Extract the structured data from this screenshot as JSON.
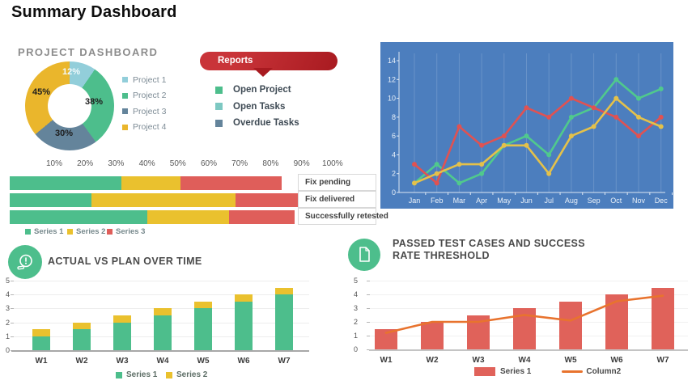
{
  "page": {
    "title": "Summary Dashboard"
  },
  "reports": {
    "label": "Reports",
    "color": "#be2127",
    "items": [
      {
        "label": "Open Project",
        "color": "#4dbe8c"
      },
      {
        "label": "Open Tasks",
        "color": "#7dc8c2"
      },
      {
        "label": "Overdue Tasks",
        "color": "#64849b"
      }
    ]
  },
  "chart_data": [
    {
      "id": "project-dashboard-donut",
      "type": "pie",
      "title": "PROJECT DASHBOARD",
      "labels": [
        "Project 1",
        "Project 2",
        "Project 3",
        "Project 4"
      ],
      "values": [
        12,
        38,
        30,
        45
      ],
      "pct_labels": [
        "12%",
        "38%",
        "30%",
        "45%"
      ],
      "colors": [
        "#92ceda",
        "#4dbe8c",
        "#64849b",
        "#eab62c"
      ],
      "legend_position": "right"
    },
    {
      "id": "monthly-trend-lines",
      "type": "line",
      "background": "#4c7ebe",
      "x": [
        "Jan",
        "Feb",
        "Mar",
        "Apr",
        "May",
        "Jun",
        "Jul",
        "Aug",
        "Sep",
        "Oct",
        "Nov",
        "Dec"
      ],
      "y_ticks": [
        0,
        2,
        4,
        6,
        8,
        10,
        12,
        14
      ],
      "ylim": [
        0,
        14
      ],
      "grid": true,
      "series": [
        {
          "name": "green-series",
          "color": "#50c98d",
          "values": [
            1,
            3,
            1,
            2,
            5,
            6,
            4,
            8,
            9,
            12,
            10,
            11
          ]
        },
        {
          "name": "red-series",
          "color": "#e05252",
          "values": [
            3,
            1,
            7,
            5,
            6,
            9,
            8,
            10,
            9,
            8,
            6,
            8
          ]
        },
        {
          "name": "yellow-series",
          "color": "#e4c14a",
          "values": [
            1,
            2,
            3,
            3,
            5,
            5,
            2,
            6,
            7,
            10,
            8,
            7
          ]
        }
      ]
    },
    {
      "id": "fix-status-stacked-bars",
      "type": "bar",
      "orientation": "horizontal",
      "stacked": true,
      "axis_labels": [
        "10%",
        "20%",
        "30%",
        "40%",
        "50%",
        "60%",
        "70%",
        "80%",
        "90%",
        "100%"
      ],
      "xlim_pct": [
        0,
        100
      ],
      "categories": [
        "Fix pending",
        "Fix delivered",
        "Successfully retested"
      ],
      "series": [
        {
          "name": "Series 1",
          "color": "#4dbe8c",
          "values": [
            34,
            25,
            42
          ]
        },
        {
          "name": "Series 2",
          "color": "#eac12e",
          "values": [
            18,
            44,
            25
          ]
        },
        {
          "name": "Series 3",
          "color": "#df5e5a",
          "values": [
            31,
            20,
            20
          ]
        }
      ],
      "legend_position": "bottom"
    },
    {
      "id": "actual-vs-plan",
      "type": "bar",
      "stacked": true,
      "title": "ACTUAL VS PLAN OVER TIME",
      "categories": [
        "W1",
        "W2",
        "W3",
        "W4",
        "W5",
        "W6",
        "W7"
      ],
      "y_ticks": [
        0,
        1,
        2,
        3,
        4,
        5
      ],
      "ylim": [
        0,
        5
      ],
      "grid": true,
      "series": [
        {
          "name": "Series 1",
          "color": "#4dbe8c",
          "values": [
            1,
            1.5,
            2,
            2.5,
            3,
            3.5,
            4
          ]
        },
        {
          "name": "Series 2",
          "color": "#eac12e",
          "values": [
            0.5,
            0.5,
            0.5,
            0.5,
            0.5,
            0.5,
            0.5
          ]
        }
      ],
      "legend_position": "bottom"
    },
    {
      "id": "passed-test-cases",
      "type": "bar+line",
      "title": "PASSED TEST CASES AND SUCCESS RATE THRESHOLD",
      "title_lines": [
        "PASSED TEST CASES AND SUCCESS",
        "RATE THRESHOLD"
      ],
      "categories": [
        "W1",
        "W2",
        "W3",
        "W4",
        "W5",
        "W6",
        "W7"
      ],
      "y_ticks": [
        0,
        1,
        2,
        3,
        4,
        5
      ],
      "ylim": [
        0,
        5
      ],
      "grid": true,
      "bar_series": {
        "name": "Series 1",
        "color": "#e0625a",
        "values": [
          1.5,
          2,
          2.5,
          3,
          3.5,
          4,
          4.5
        ]
      },
      "line_series": {
        "name": "Column2",
        "color": "#e8732e",
        "values": [
          1.2,
          2,
          2,
          2.5,
          2.1,
          3.5,
          3.9
        ]
      },
      "legend_position": "bottom"
    }
  ]
}
